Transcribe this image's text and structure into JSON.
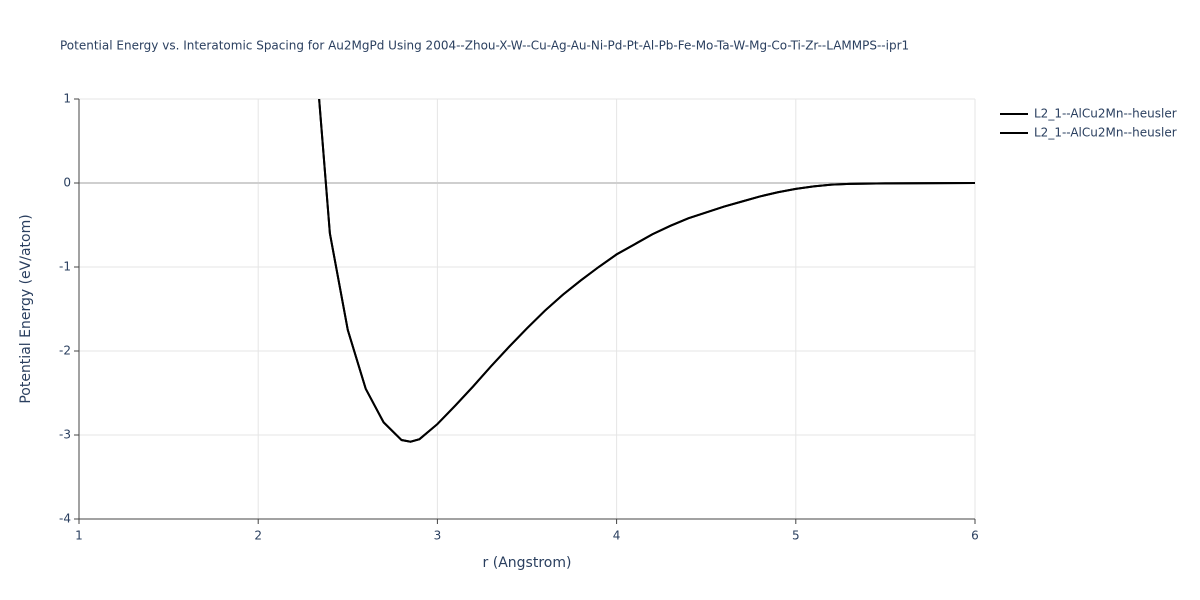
{
  "chart_data": {
    "type": "line",
    "title": "Potential Energy vs. Interatomic Spacing for Au2MgPd Using 2004--Zhou-X-W--Cu-Ag-Au-Ni-Pd-Pt-Al-Pb-Fe-Mo-Ta-W-Mg-Co-Ti-Zr--LAMMPS--ipr1",
    "x_label": "r (Angstrom)",
    "y_label": "Potential Energy (eV/atom)",
    "x": [
      2.34,
      2.4,
      2.5,
      2.6,
      2.7,
      2.8,
      2.85,
      2.9,
      3.0,
      3.1,
      3.2,
      3.3,
      3.4,
      3.5,
      3.6,
      3.7,
      3.8,
      3.9,
      4.0,
      4.1,
      4.2,
      4.3,
      4.4,
      4.5,
      4.6,
      4.7,
      4.8,
      4.9,
      5.0,
      5.1,
      5.2,
      5.3,
      5.5,
      6.0
    ],
    "series": [
      {
        "name": "L2_1--AlCu2Mn--heusler",
        "color": "#000000",
        "values": [
          1.0,
          -0.6,
          -1.75,
          -2.45,
          -2.85,
          -3.06,
          -3.08,
          -3.05,
          -2.87,
          -2.65,
          -2.42,
          -2.18,
          -1.95,
          -1.73,
          -1.52,
          -1.33,
          -1.16,
          -1.0,
          -0.85,
          -0.73,
          -0.61,
          -0.51,
          -0.42,
          -0.35,
          -0.28,
          -0.22,
          -0.16,
          -0.11,
          -0.07,
          -0.04,
          -0.02,
          -0.01,
          -0.005,
          0
        ]
      },
      {
        "name": "L2_1--AlCu2Mn--heusler",
        "color": "#000000",
        "values": [
          1.0,
          -0.6,
          -1.75,
          -2.45,
          -2.85,
          -3.06,
          -3.08,
          -3.05,
          -2.87,
          -2.65,
          -2.42,
          -2.18,
          -1.95,
          -1.73,
          -1.52,
          -1.33,
          -1.16,
          -1.0,
          -0.85,
          -0.73,
          -0.61,
          -0.51,
          -0.42,
          -0.35,
          -0.28,
          -0.22,
          -0.16,
          -0.11,
          -0.07,
          -0.04,
          -0.02,
          -0.01,
          -0.005,
          0
        ]
      }
    ],
    "xlim": [
      1,
      6
    ],
    "xticks": [
      1,
      2,
      3,
      4,
      5,
      6
    ],
    "ylim": [
      -4,
      1
    ],
    "yticks": [
      -4,
      -3,
      -2,
      -1,
      0,
      1
    ],
    "grid": true,
    "legend": "top-right"
  }
}
